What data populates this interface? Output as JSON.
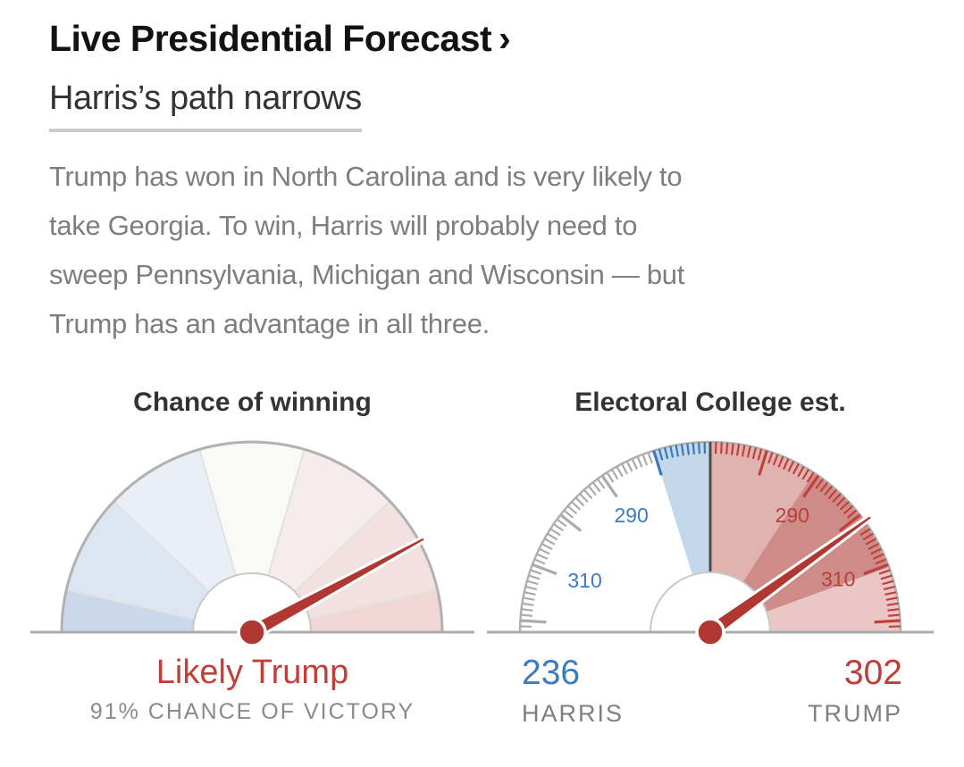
{
  "header": {
    "kicker": "Live Presidential Forecast",
    "kicker_arrow": "›",
    "headline": "Harris’s path narrows",
    "paragraph_lines": [
      "Trump has won in North Carolina and is very likely to",
      "take Georgia. To win, Harris will probably need to",
      "sweep Pennsylvania, Michigan and Wisconsin — but",
      "Trump has an advantage in all three."
    ]
  },
  "colors": {
    "kicker_text": "#121212",
    "headline_text": "#333333",
    "headline_underline": "#cccccc",
    "paragraph_text": "#7e7e7e",
    "needle_red": "#b13832",
    "result_red": "#c23e39",
    "harris_blue": "#3e7abf",
    "trump_red": "#c23b36",
    "muted_gray": "#8a8a8a",
    "rim_gray": "#b1b1b1",
    "baseline_gray": "#ababab"
  },
  "chart_data": [
    {
      "type": "gauge",
      "title": "Chance of winning",
      "needle": {
        "value": "91% Trump",
        "angle_deg_from_vertical": 61.5,
        "length": 220,
        "color": "#b13832"
      },
      "segments": [
        {
          "from_deg": -90,
          "to_deg": -77,
          "color": "#cbd8eb"
        },
        {
          "from_deg": -77,
          "to_deg": -46.5,
          "color": "#dce6f2"
        },
        {
          "from_deg": -46.5,
          "to_deg": -16,
          "color": "#eaeff7"
        },
        {
          "from_deg": -16,
          "to_deg": 16,
          "color": "#f9f9f8"
        },
        {
          "from_deg": 16,
          "to_deg": 46.5,
          "color": "#f7ecec"
        },
        {
          "from_deg": 46.5,
          "to_deg": 77,
          "color": "#f3e1e0"
        },
        {
          "from_deg": 77,
          "to_deg": 90,
          "color": "#f0d6d5"
        }
      ],
      "segment_divider_color": "#e2e2e2",
      "result_label": "Likely Trump",
      "result_sublabel": "91% CHANCE OF VICTORY"
    },
    {
      "type": "gauge",
      "title": "Electoral College est.",
      "needle": {
        "value": "302 Trump",
        "angle_deg_from_vertical": 54.3,
        "length": 222,
        "color": "#b13832"
      },
      "bands": [
        {
          "from_deg": -17.3,
          "to_deg": 0,
          "color": "#c4d8ec"
        },
        {
          "from_deg": 0,
          "to_deg": 33,
          "color": "#e0b2b0"
        },
        {
          "from_deg": 33,
          "to_deg": 70,
          "color": "#cf8b88"
        },
        {
          "from_deg": 70,
          "to_deg": 90,
          "color": "#eac6c4"
        }
      ],
      "ticks": {
        "step_deg": 1.73,
        "long_every": 10,
        "max_deg": 88.3,
        "left_color": "#ababab",
        "left_blue_color": "#3a77bb",
        "left_blue_until_deg": 17.4,
        "right_color": "#c0413c"
      },
      "center_line_color": "#4d4d4d",
      "tick_labels": [
        {
          "text": "290",
          "side": "harris",
          "angle_deg": -34,
          "radius": 158,
          "color": "#3e7abf"
        },
        {
          "text": "310",
          "side": "harris",
          "angle_deg": -67.5,
          "radius": 152,
          "color": "#3e7abf"
        },
        {
          "text": "290",
          "side": "trump",
          "angle_deg": 35,
          "radius": 160,
          "color": "#b5423c"
        },
        {
          "text": "310",
          "side": "trump",
          "angle_deg": 67.5,
          "radius": 155,
          "color": "#b5423c"
        }
      ],
      "totals": {
        "harris": {
          "value": "236",
          "label": "HARRIS"
        },
        "trump": {
          "value": "302",
          "label": "TRUMP"
        }
      }
    }
  ]
}
